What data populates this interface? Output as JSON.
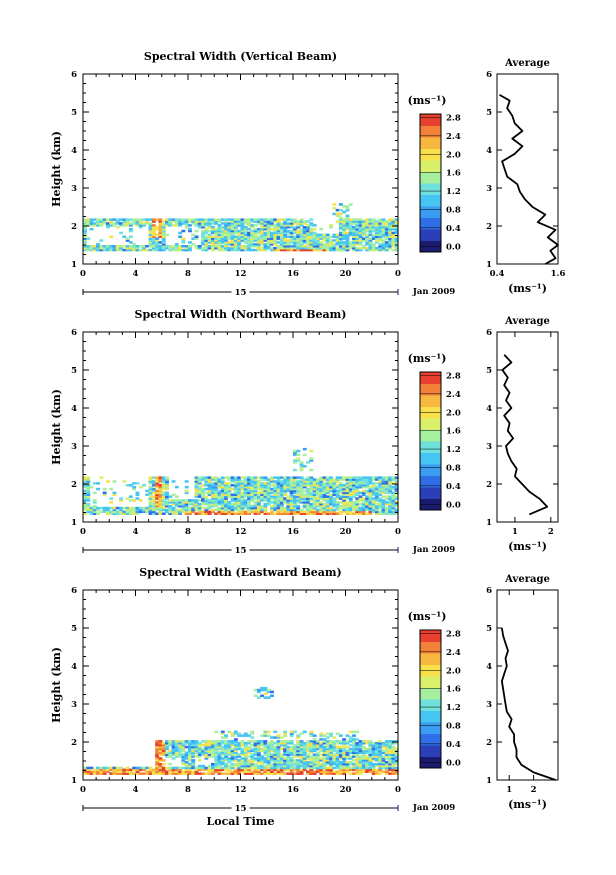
{
  "chart_data": {
    "type": "heatmap",
    "date_label": "Jan 2009",
    "day_label": "15",
    "xlabel_bottom": "Local Time",
    "colorbar": {
      "unit_label": "(ms⁻¹)",
      "ticks": [
        "0.0",
        "0.4",
        "0.8",
        "1.2",
        "1.6",
        "2.0",
        "2.4",
        "2.8"
      ],
      "range": [
        0.0,
        3.0
      ],
      "colors": [
        "#1a1a6e",
        "#2b3fb8",
        "#2f6ee6",
        "#3a9df2",
        "#46c4f2",
        "#6fe0dc",
        "#a6ef9e",
        "#d9f06a",
        "#f7e04a",
        "#f8b840",
        "#f2823a",
        "#e8402e"
      ]
    },
    "panels": [
      {
        "title": "Spectral Width (Vertical Beam)",
        "ylabel": "Height (km)",
        "yticks": [
          "1",
          "2",
          "3",
          "4",
          "5",
          "6"
        ],
        "xticks": [
          "0",
          "4",
          "8",
          "12",
          "16",
          "20",
          "0"
        ],
        "avg_title": "Average",
        "avg_xlabel": "(ms⁻¹)",
        "avg_xticks": [
          "0.4",
          "1.6"
        ],
        "avg_xrange": [
          0.4,
          1.6
        ],
        "avg_profile": [
          [
            1.0,
            1.35
          ],
          [
            1.15,
            1.55
          ],
          [
            1.35,
            1.45
          ],
          [
            1.5,
            1.6
          ],
          [
            1.7,
            1.4
          ],
          [
            1.9,
            1.55
          ],
          [
            2.1,
            1.2
          ],
          [
            2.3,
            1.35
          ],
          [
            2.5,
            1.1
          ],
          [
            2.7,
            0.95
          ],
          [
            2.9,
            0.85
          ],
          [
            3.1,
            0.8
          ],
          [
            3.3,
            0.6
          ],
          [
            3.5,
            0.55
          ],
          [
            3.7,
            0.5
          ],
          [
            3.9,
            0.75
          ],
          [
            4.1,
            0.9
          ],
          [
            4.3,
            0.7
          ],
          [
            4.5,
            0.9
          ],
          [
            4.7,
            0.75
          ],
          [
            4.9,
            0.7
          ],
          [
            5.1,
            0.6
          ],
          [
            5.3,
            0.65
          ],
          [
            5.45,
            0.45
          ]
        ],
        "coverage": [
          {
            "x0": 0.0,
            "x1": 24.0,
            "y0": 1.35,
            "y1": 2.2
          }
        ],
        "gaps": [
          {
            "x0": 0.2,
            "x1": 5.0,
            "y0": 1.5,
            "y1": 2.0
          },
          {
            "x0": 6.2,
            "x1": 9.0,
            "y0": 1.5,
            "y1": 2.0
          },
          {
            "x0": 17.5,
            "x1": 19.5,
            "y0": 1.8,
            "y1": 2.2
          }
        ],
        "scatter": [
          {
            "x0": 19.0,
            "x1": 20.5,
            "y0": 2.2,
            "y1": 2.55
          }
        ],
        "hot": [
          {
            "x0": 5.2,
            "x1": 6.0,
            "y0": 1.7,
            "y1": 2.3
          },
          {
            "x0": 14.5,
            "x1": 18.5,
            "y0": 1.2,
            "y1": 1.4
          }
        ]
      },
      {
        "title": "Spectral Width (Northward Beam)",
        "ylabel": "Height (km)",
        "yticks": [
          "1",
          "2",
          "3",
          "4",
          "5",
          "6"
        ],
        "xticks": [
          "0",
          "4",
          "8",
          "12",
          "16",
          "20",
          "0"
        ],
        "avg_title": "Average",
        "avg_xlabel": "(ms⁻¹)",
        "avg_xticks": [
          "1",
          "2"
        ],
        "avg_xrange": [
          0.5,
          2.2
        ],
        "avg_profile": [
          [
            1.2,
            1.4
          ],
          [
            1.4,
            1.9
          ],
          [
            1.6,
            1.7
          ],
          [
            1.8,
            1.4
          ],
          [
            2.0,
            1.2
          ],
          [
            2.2,
            1.0
          ],
          [
            2.4,
            1.05
          ],
          [
            2.6,
            0.9
          ],
          [
            2.8,
            0.8
          ],
          [
            3.0,
            0.75
          ],
          [
            3.2,
            0.95
          ],
          [
            3.4,
            0.8
          ],
          [
            3.6,
            0.85
          ],
          [
            3.8,
            0.7
          ],
          [
            4.0,
            0.9
          ],
          [
            4.2,
            0.75
          ],
          [
            4.4,
            0.85
          ],
          [
            4.6,
            0.7
          ],
          [
            4.8,
            0.8
          ],
          [
            5.0,
            0.65
          ],
          [
            5.2,
            0.9
          ],
          [
            5.4,
            0.7
          ]
        ],
        "coverage": [
          {
            "x0": 0.0,
            "x1": 24.0,
            "y0": 1.2,
            "y1": 2.2
          }
        ],
        "gaps": [
          {
            "x0": 0.3,
            "x1": 5.0,
            "y0": 1.4,
            "y1": 2.2
          },
          {
            "x0": 6.3,
            "x1": 8.5,
            "y0": 1.6,
            "y1": 2.2
          }
        ],
        "scatter": [
          {
            "x0": 16.0,
            "x1": 17.5,
            "y0": 2.3,
            "y1": 2.9
          },
          {
            "x0": 1.5,
            "x1": 2.0,
            "y0": 2.05,
            "y1": 2.2
          }
        ],
        "hot": [
          {
            "x0": 5.3,
            "x1": 6.0,
            "y0": 1.4,
            "y1": 2.3
          },
          {
            "x0": 7.5,
            "x1": 22.0,
            "y0": 1.2,
            "y1": 1.3
          }
        ]
      },
      {
        "title": "Spectral Width (Eastward Beam)",
        "ylabel": "Height (km)",
        "yticks": [
          "1",
          "2",
          "3",
          "4",
          "5",
          "6"
        ],
        "xticks": [
          "0",
          "4",
          "8",
          "12",
          "16",
          "20",
          "0"
        ],
        "avg_title": "Average",
        "avg_xlabel": "(ms⁻¹)",
        "avg_xticks": [
          "1",
          "2"
        ],
        "avg_xrange": [
          0.5,
          3.0
        ],
        "avg_profile": [
          [
            1.0,
            2.9
          ],
          [
            1.2,
            2.0
          ],
          [
            1.4,
            1.5
          ],
          [
            1.6,
            1.3
          ],
          [
            1.8,
            1.3
          ],
          [
            2.0,
            1.2
          ],
          [
            2.2,
            1.2
          ],
          [
            2.4,
            1.0
          ],
          [
            2.6,
            1.1
          ],
          [
            2.8,
            0.9
          ],
          [
            3.0,
            0.85
          ],
          [
            3.2,
            0.8
          ],
          [
            3.4,
            0.75
          ],
          [
            3.6,
            0.7
          ],
          [
            3.8,
            0.8
          ],
          [
            4.0,
            0.9
          ],
          [
            4.2,
            0.85
          ],
          [
            4.4,
            0.95
          ],
          [
            4.6,
            0.85
          ],
          [
            4.8,
            0.75
          ],
          [
            5.0,
            0.7
          ]
        ],
        "coverage": [
          {
            "x0": 0.0,
            "x1": 24.0,
            "y0": 1.15,
            "y1": 1.35
          },
          {
            "x0": 5.5,
            "x1": 24.0,
            "y0": 1.35,
            "y1": 2.05
          }
        ],
        "gaps": [
          {
            "x0": 6.0,
            "x1": 7.5,
            "y0": 1.35,
            "y1": 1.6
          },
          {
            "x0": 8.5,
            "x1": 10.0,
            "y0": 1.4,
            "y1": 1.6
          }
        ],
        "scatter": [
          {
            "x0": 10.0,
            "x1": 21.0,
            "y0": 2.05,
            "y1": 2.3
          },
          {
            "x0": 13.0,
            "x1": 14.5,
            "y0": 3.1,
            "y1": 3.4
          }
        ],
        "hot": [
          {
            "x0": 0.0,
            "x1": 24.0,
            "y0": 1.15,
            "y1": 1.3
          },
          {
            "x0": 5.5,
            "x1": 6.2,
            "y0": 1.3,
            "y1": 2.5
          }
        ]
      }
    ]
  }
}
